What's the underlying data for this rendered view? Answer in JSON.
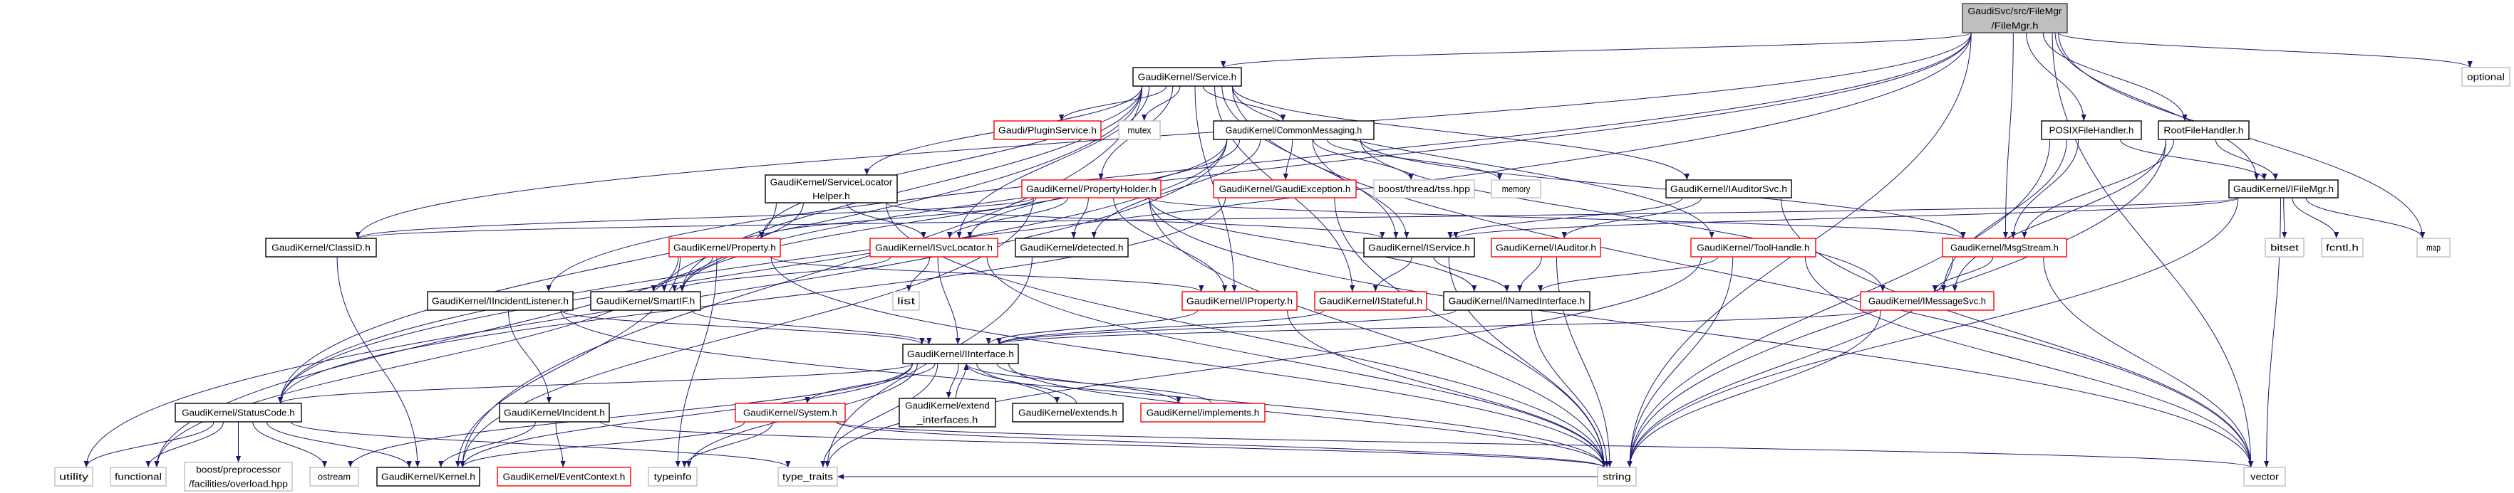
{
  "colors": {
    "edge": "#191970",
    "documented": "#000000",
    "undocumented": "#ff0000",
    "external": "#bfbfbf",
    "root_fill": "#bfbfbf"
  },
  "nodes": [
    {
      "id": "filemgr",
      "lines": [
        "GaudiSvc/src/FileMgr",
        "/FileMgr.h"
      ],
      "style": "root"
    },
    {
      "id": "service",
      "lines": [
        "GaudiKernel/Service.h"
      ],
      "style": "black"
    },
    {
      "id": "optional",
      "lines": [
        "optional"
      ],
      "style": "gray"
    },
    {
      "id": "pluginservice",
      "lines": [
        "Gaudi/PluginService.h"
      ],
      "style": "red"
    },
    {
      "id": "mutex",
      "lines": [
        "mutex"
      ],
      "style": "gray"
    },
    {
      "id": "commonmessaging",
      "lines": [
        "GaudiKernel/CommonMessaging.h"
      ],
      "style": "black"
    },
    {
      "id": "posix",
      "lines": [
        "POSIXFileHandler.h"
      ],
      "style": "black"
    },
    {
      "id": "rootfh",
      "lines": [
        "RootFileHandler.h"
      ],
      "style": "black"
    },
    {
      "id": "slhelper",
      "lines": [
        "GaudiKernel/ServiceLocator",
        "Helper.h"
      ],
      "style": "black"
    },
    {
      "id": "propertyholder",
      "lines": [
        "GaudiKernel/PropertyHolder.h"
      ],
      "style": "red"
    },
    {
      "id": "gaudiexception",
      "lines": [
        "GaudiKernel/GaudiException.h"
      ],
      "style": "red"
    },
    {
      "id": "tss",
      "lines": [
        "boost/thread/tss.hpp"
      ],
      "style": "gray"
    },
    {
      "id": "memory",
      "lines": [
        "memory"
      ],
      "style": "gray"
    },
    {
      "id": "iauditorsvc",
      "lines": [
        "GaudiKernel/IAuditorSvc.h"
      ],
      "style": "black"
    },
    {
      "id": "ifilemgr",
      "lines": [
        "GaudiKernel/IFileMgr.h"
      ],
      "style": "black"
    },
    {
      "id": "classid",
      "lines": [
        "GaudiKernel/ClassID.h"
      ],
      "style": "black"
    },
    {
      "id": "property",
      "lines": [
        "GaudiKernel/Property.h"
      ],
      "style": "red"
    },
    {
      "id": "isvclocator",
      "lines": [
        "GaudiKernel/ISvcLocator.h"
      ],
      "style": "red"
    },
    {
      "id": "detected",
      "lines": [
        "GaudiKernel/detected.h"
      ],
      "style": "black"
    },
    {
      "id": "iservice",
      "lines": [
        "GaudiKernel/IService.h"
      ],
      "style": "black"
    },
    {
      "id": "iauditor",
      "lines": [
        "GaudiKernel/IAuditor.h"
      ],
      "style": "red"
    },
    {
      "id": "toolhandle",
      "lines": [
        "GaudiKernel/ToolHandle.h"
      ],
      "style": "red"
    },
    {
      "id": "msgstream",
      "lines": [
        "GaudiKernel/MsgStream.h"
      ],
      "style": "red"
    },
    {
      "id": "bitset",
      "lines": [
        "bitset"
      ],
      "style": "gray"
    },
    {
      "id": "fcntl",
      "lines": [
        "fcntl.h"
      ],
      "style": "gray"
    },
    {
      "id": "map",
      "lines": [
        "map"
      ],
      "style": "gray"
    },
    {
      "id": "iincidentlistener",
      "lines": [
        "GaudiKernel/IIncidentListener.h"
      ],
      "style": "black"
    },
    {
      "id": "smartif",
      "lines": [
        "GaudiKernel/SmartIF.h"
      ],
      "style": "black"
    },
    {
      "id": "list",
      "lines": [
        "list"
      ],
      "style": "gray"
    },
    {
      "id": "iproperty",
      "lines": [
        "GaudiKernel/IProperty.h"
      ],
      "style": "red"
    },
    {
      "id": "istateful",
      "lines": [
        "GaudiKernel/IStateful.h"
      ],
      "style": "red"
    },
    {
      "id": "inamedinterface",
      "lines": [
        "GaudiKernel/INamedInterface.h"
      ],
      "style": "black"
    },
    {
      "id": "imessagesvc",
      "lines": [
        "GaudiKernel/IMessageSvc.h"
      ],
      "style": "red"
    },
    {
      "id": "iinterface",
      "lines": [
        "GaudiKernel/IInterface.h"
      ],
      "style": "black"
    },
    {
      "id": "statuscode",
      "lines": [
        "GaudiKernel/StatusCode.h"
      ],
      "style": "black"
    },
    {
      "id": "incident",
      "lines": [
        "GaudiKernel/Incident.h"
      ],
      "style": "black"
    },
    {
      "id": "system",
      "lines": [
        "GaudiKernel/System.h"
      ],
      "style": "red"
    },
    {
      "id": "extendif",
      "lines": [
        "GaudiKernel/extend",
        "_interfaces.h"
      ],
      "style": "black"
    },
    {
      "id": "extends",
      "lines": [
        "GaudiKernel/extends.h"
      ],
      "style": "black"
    },
    {
      "id": "implements",
      "lines": [
        "GaudiKernel/implements.h"
      ],
      "style": "red"
    },
    {
      "id": "utility",
      "lines": [
        "utility"
      ],
      "style": "gray"
    },
    {
      "id": "functional",
      "lines": [
        "functional"
      ],
      "style": "gray"
    },
    {
      "id": "overload",
      "lines": [
        "boost/preprocessor",
        "/facilities/overload.hpp"
      ],
      "style": "gray"
    },
    {
      "id": "ostream",
      "lines": [
        "ostream"
      ],
      "style": "gray"
    },
    {
      "id": "kernel",
      "lines": [
        "GaudiKernel/Kernel.h"
      ],
      "style": "black"
    },
    {
      "id": "eventcontext",
      "lines": [
        "GaudiKernel/EventContext.h"
      ],
      "style": "red"
    },
    {
      "id": "typeinfo",
      "lines": [
        "typeinfo"
      ],
      "style": "gray"
    },
    {
      "id": "type_traits",
      "lines": [
        "type_traits"
      ],
      "style": "gray"
    },
    {
      "id": "string",
      "lines": [
        "string"
      ],
      "style": "gray"
    },
    {
      "id": "vector",
      "lines": [
        "vector"
      ],
      "style": "gray"
    }
  ],
  "edges": [
    [
      "filemgr",
      "service"
    ],
    [
      "filemgr",
      "classid"
    ],
    [
      "filemgr",
      "statuscode"
    ],
    [
      "filemgr",
      "posix"
    ],
    [
      "filemgr",
      "rootfh"
    ],
    [
      "filemgr",
      "ifilemgr"
    ],
    [
      "filemgr",
      "string"
    ],
    [
      "filemgr",
      "map"
    ],
    [
      "filemgr",
      "optional"
    ],
    [
      "filemgr",
      "vector"
    ],
    [
      "filemgr",
      "iincidentlistener"
    ],
    [
      "filemgr",
      "smartif"
    ],
    [
      "filemgr",
      "msgstream"
    ],
    [
      "service",
      "pluginservice"
    ],
    [
      "service",
      "mutex"
    ],
    [
      "service",
      "commonmessaging"
    ],
    [
      "service",
      "propertyholder"
    ],
    [
      "service",
      "isvclocator"
    ],
    [
      "service",
      "iservice"
    ],
    [
      "service",
      "iauditorsvc"
    ],
    [
      "service",
      "istateful"
    ],
    [
      "service",
      "toolhandle"
    ],
    [
      "service",
      "slhelper"
    ],
    [
      "service",
      "property"
    ],
    [
      "service",
      "smartif"
    ],
    [
      "service",
      "kernel"
    ],
    [
      "service",
      "statuscode"
    ],
    [
      "service",
      "vector"
    ],
    [
      "service",
      "iproperty"
    ],
    [
      "commonmessaging",
      "gaudiexception"
    ],
    [
      "commonmessaging",
      "tss"
    ],
    [
      "commonmessaging",
      "memory"
    ],
    [
      "commonmessaging",
      "isvclocator"
    ],
    [
      "commonmessaging",
      "iservice"
    ],
    [
      "commonmessaging",
      "msgstream"
    ],
    [
      "commonmessaging",
      "imessagesvc"
    ],
    [
      "commonmessaging",
      "smartif"
    ],
    [
      "commonmessaging",
      "detected"
    ],
    [
      "commonmessaging",
      "utility"
    ],
    [
      "commonmessaging",
      "statuscode"
    ],
    [
      "propertyholder",
      "isvclocator"
    ],
    [
      "propertyholder",
      "detected"
    ],
    [
      "propertyholder",
      "iproperty"
    ],
    [
      "propertyholder",
      "inamedinterface"
    ],
    [
      "propertyholder",
      "property"
    ],
    [
      "propertyholder",
      "kernel"
    ],
    [
      "propertyholder",
      "string"
    ],
    [
      "propertyholder",
      "vector"
    ],
    [
      "propertyholder",
      "msgstream"
    ],
    [
      "propertyholder",
      "classid"
    ],
    [
      "slhelper",
      "isvclocator"
    ],
    [
      "slhelper",
      "iservice"
    ],
    [
      "slhelper",
      "smartif"
    ],
    [
      "slhelper",
      "string"
    ],
    [
      "slhelper",
      "functional"
    ],
    [
      "gaudiexception",
      "statuscode"
    ],
    [
      "gaudiexception",
      "string"
    ],
    [
      "property",
      "smartif"
    ],
    [
      "property",
      "iproperty"
    ],
    [
      "property",
      "kernel"
    ],
    [
      "property",
      "typeinfo"
    ],
    [
      "property",
      "string"
    ],
    [
      "property",
      "functional"
    ],
    [
      "isvclocator",
      "list"
    ],
    [
      "isvclocator",
      "iinterface"
    ],
    [
      "isvclocator",
      "string"
    ],
    [
      "isvclocator",
      "smartif"
    ],
    [
      "detected",
      "type_traits"
    ],
    [
      "iservice",
      "istateful"
    ],
    [
      "iservice",
      "inamedinterface"
    ],
    [
      "iservice",
      "string"
    ],
    [
      "iauditor",
      "inamedinterface"
    ],
    [
      "iauditor",
      "string"
    ],
    [
      "iauditorsvc",
      "iservice"
    ],
    [
      "iauditorsvc",
      "iauditor"
    ],
    [
      "iauditorsvc",
      "vector"
    ],
    [
      "toolhandle",
      "inamedinterface"
    ],
    [
      "toolhandle",
      "string"
    ],
    [
      "toolhandle",
      "vector"
    ],
    [
      "toolhandle",
      "type_traits"
    ],
    [
      "msgstream",
      "imessagesvc"
    ],
    [
      "msgstream",
      "string"
    ],
    [
      "msgstream",
      "vector"
    ],
    [
      "imessagesvc",
      "iinterface"
    ],
    [
      "imessagesvc",
      "string"
    ],
    [
      "posix",
      "ifilemgr"
    ],
    [
      "posix",
      "msgstream"
    ],
    [
      "posix",
      "imessagesvc"
    ],
    [
      "posix",
      "string"
    ],
    [
      "rootfh",
      "ifilemgr"
    ],
    [
      "rootfh",
      "msgstream"
    ],
    [
      "rootfh",
      "imessagesvc"
    ],
    [
      "rootfh",
      "string"
    ],
    [
      "ifilemgr",
      "bitset"
    ],
    [
      "ifilemgr",
      "fcntl"
    ],
    [
      "ifilemgr",
      "map"
    ],
    [
      "ifilemgr",
      "vector"
    ],
    [
      "ifilemgr",
      "string"
    ],
    [
      "ifilemgr",
      "iservice"
    ],
    [
      "ifilemgr",
      "classid"
    ],
    [
      "iproperty",
      "iinterface"
    ],
    [
      "iproperty",
      "string"
    ],
    [
      "istateful",
      "iinterface"
    ],
    [
      "inamedinterface",
      "iinterface"
    ],
    [
      "inamedinterface",
      "string"
    ],
    [
      "iincidentlistener",
      "incident"
    ],
    [
      "iincidentlistener",
      "iinterface"
    ],
    [
      "iincidentlistener",
      "string"
    ],
    [
      "smartif",
      "iinterface"
    ],
    [
      "iinterface",
      "statuscode"
    ],
    [
      "iinterface",
      "system"
    ],
    [
      "iinterface",
      "extendif"
    ],
    [
      "iinterface",
      "extends"
    ],
    [
      "iinterface",
      "implements"
    ],
    [
      "iinterface",
      "kernel"
    ],
    [
      "iinterface",
      "ostream"
    ],
    [
      "iinterface",
      "typeinfo"
    ],
    [
      "iinterface",
      "type_traits"
    ],
    [
      "iinterface",
      "string"
    ],
    [
      "extendif",
      "iinterface"
    ],
    [
      "extends",
      "iinterface"
    ],
    [
      "implements",
      "iinterface"
    ],
    [
      "statuscode",
      "utility"
    ],
    [
      "statuscode",
      "functional"
    ],
    [
      "statuscode",
      "overload"
    ],
    [
      "statuscode",
      "ostream"
    ],
    [
      "statuscode",
      "kernel"
    ],
    [
      "statuscode",
      "type_traits"
    ],
    [
      "incident",
      "kernel"
    ],
    [
      "incident",
      "eventcontext"
    ],
    [
      "incident",
      "string"
    ],
    [
      "system",
      "kernel"
    ],
    [
      "system",
      "typeinfo"
    ],
    [
      "system",
      "string"
    ],
    [
      "system",
      "vector"
    ],
    [
      "classid",
      "kernel"
    ],
    [
      "string",
      "type_traits"
    ]
  ]
}
